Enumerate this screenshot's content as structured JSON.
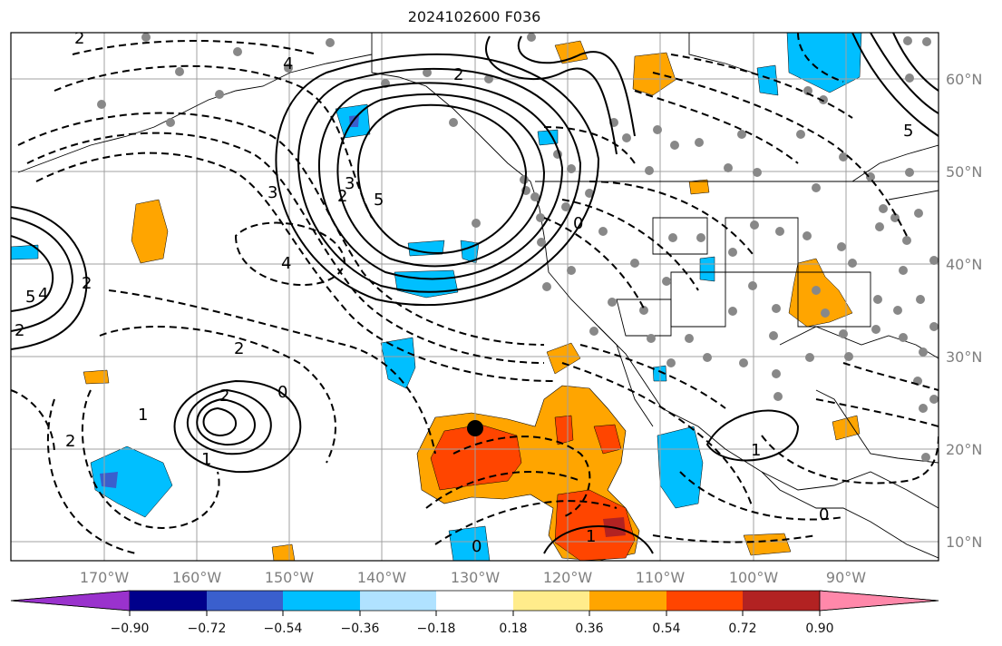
{
  "title": "2024102600 F036",
  "map": {
    "lat_labels": [
      "60°N",
      "50°N",
      "40°N",
      "30°N",
      "20°N",
      "10°N"
    ],
    "lon_labels": [
      "170°W",
      "160°W",
      "150°W",
      "140°W",
      "130°W",
      "120°W",
      "110°W",
      "100°W",
      "90°W"
    ]
  },
  "colorbar": {
    "colors": [
      "#9a32cd",
      "#00008b",
      "#3a5fcd",
      "#00bfff",
      "#b0e2ff",
      "#ffffff",
      "#ffec8b",
      "#ffa500",
      "#ff4500",
      "#b22222",
      "#ff88aa"
    ],
    "tick_labels": [
      "−0.90",
      "−0.72",
      "−0.54",
      "−0.36",
      "−0.18",
      "0.18",
      "0.36",
      "0.54",
      "0.72",
      "0.90"
    ]
  },
  "contour_labels": [
    "2",
    "4",
    "5",
    "2",
    "3",
    "0",
    "2",
    "3",
    "5",
    "2",
    "4",
    "2",
    "1",
    "2",
    "2",
    "1",
    "0",
    "1",
    "0",
    "1",
    "0",
    "5",
    "4",
    "2"
  ],
  "marker_color": "#000000",
  "station_color": "#888888",
  "shading_colors": {
    "light_orange": "#ffa500",
    "red_orange": "#ff4500",
    "dark_red": "#b22222",
    "sky_blue": "#00bfff",
    "royal_blue": "#3a5fcd"
  }
}
